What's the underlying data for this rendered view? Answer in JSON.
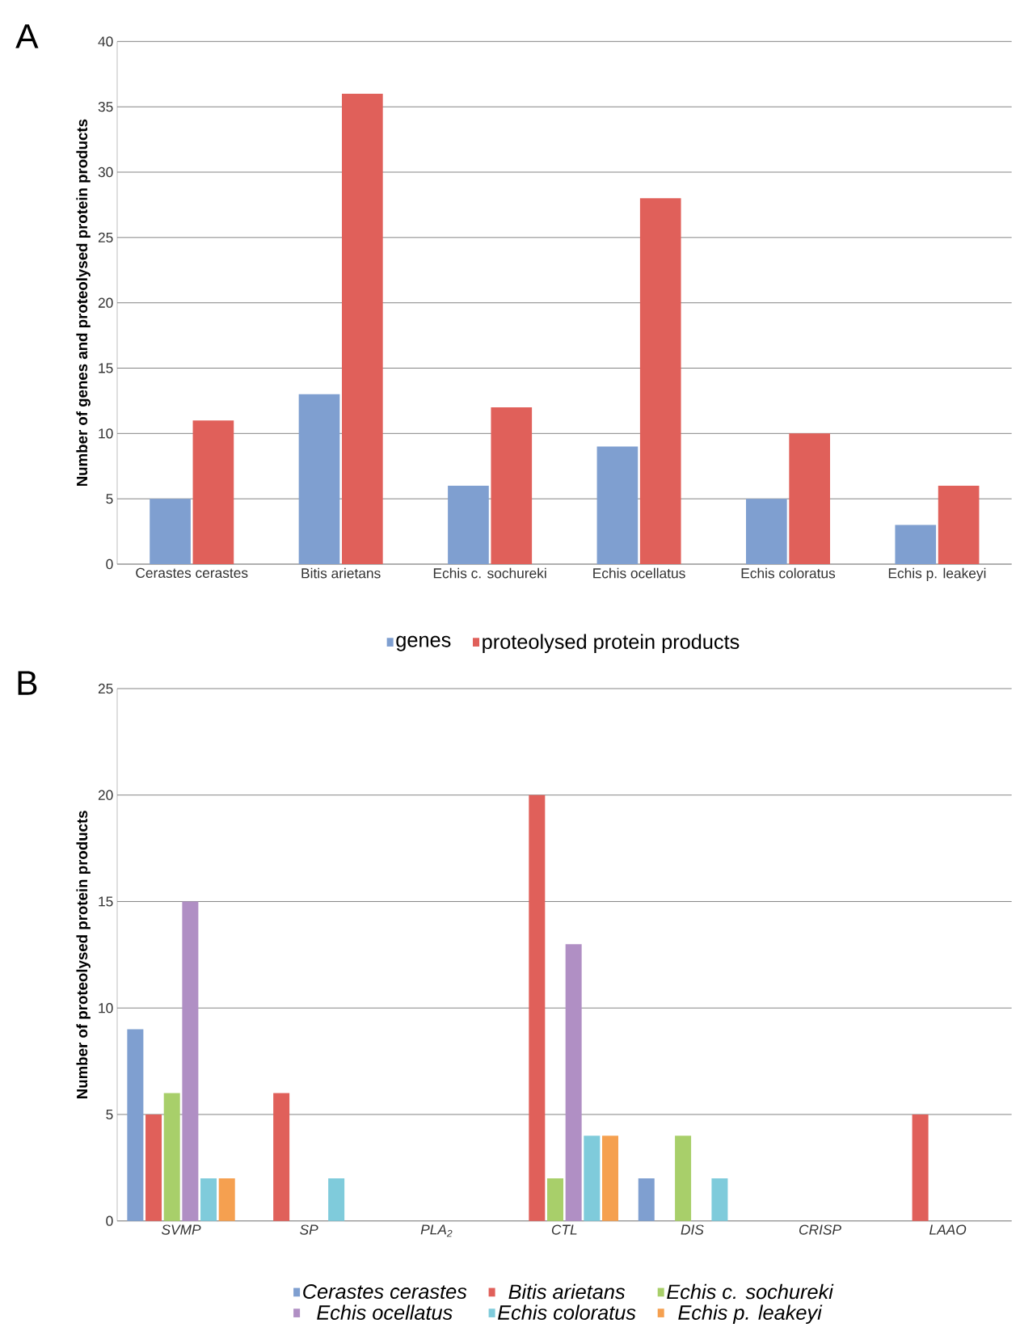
{
  "chart_data": [
    {
      "type": "bar",
      "annotations": [
        "A"
      ],
      "ylabel": "Number of genes and proteolysed protein products",
      "categories": [
        "Cerastes cerastes",
        "Bitis arietans",
        "Echis c. sochureki",
        "Echis ocellatus",
        "Echis coloratus",
        "Echis p. leakeyi"
      ],
      "series": [
        {
          "name": "genes",
          "color": "#7f9fd0",
          "values": [
            5,
            13,
            6,
            9,
            5,
            3
          ]
        },
        {
          "name": "proteolysed protein products",
          "color": "#e0605a",
          "values": [
            11,
            36,
            12,
            28,
            10,
            6
          ]
        }
      ],
      "ylim": [
        0,
        40
      ],
      "yticks": [
        0,
        5,
        10,
        15,
        20,
        25,
        30,
        35,
        40
      ],
      "grid": "y",
      "legend": "bottom"
    },
    {
      "type": "bar",
      "annotations": [
        "B"
      ],
      "ylabel": "Number of proteolysed protein products",
      "categories": [
        "SVMP",
        "SP",
        "PLA$_{2}$",
        "CTL",
        "DIS",
        "CRISP",
        "LAAO"
      ],
      "series": [
        {
          "name": "Cerastes cerastes",
          "color": "#7f9fd0",
          "values": [
            9,
            0,
            0,
            0,
            2,
            0,
            0
          ]
        },
        {
          "name": "Bitis arietans",
          "color": "#e0605a",
          "values": [
            5,
            6,
            0,
            20,
            0,
            0,
            5
          ]
        },
        {
          "name": "Echis c. sochureki",
          "color": "#a8cf6a",
          "values": [
            6,
            0,
            0,
            2,
            4,
            0,
            0
          ]
        },
        {
          "name": "Echis ocellatus",
          "color": "#b08fc4",
          "values": [
            15,
            0,
            0,
            13,
            0,
            0,
            0
          ]
        },
        {
          "name": "Echis coloratus",
          "color": "#7fcbdb",
          "values": [
            2,
            2,
            0,
            4,
            2,
            0,
            0
          ]
        },
        {
          "name": "Echis p. leakeyi",
          "color": "#f5a050",
          "values": [
            2,
            0,
            0,
            4,
            0,
            0,
            0
          ]
        }
      ],
      "ylim": [
        0,
        25
      ],
      "yticks": [
        0,
        5,
        10,
        15,
        20,
        25
      ],
      "grid": "y",
      "legend": "bottom"
    }
  ]
}
